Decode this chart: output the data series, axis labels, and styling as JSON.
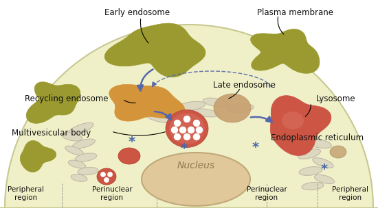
{
  "bg_color": "#ffffff",
  "cell_fill": "#f0f0c8",
  "cell_edge": "#c8c890",
  "olive_color": "#9a9a30",
  "olive_light": "#b8b845",
  "orange_color": "#d4943a",
  "tan_color": "#c8a070",
  "salmon_color": "#cc5544",
  "salmon_light": "#dd7766",
  "peach_color": "#e8c8a0",
  "er_fill": "#ddd8c0",
  "er_edge": "#c0baa8",
  "nucleus_fill": "#e0c89a",
  "nucleus_edge": "#c0a878",
  "arrow_color": "#5566aa",
  "asterisk_color": "#4466aa",
  "label_color": "#111111",
  "labels": {
    "early_endosome": "Early endosome",
    "plasma_membrane": "Plasma membrane",
    "recycling_endosome": "Recycling endosome",
    "late_endosome": "Late endosome",
    "lysosome": "Lysosome",
    "multivesicular_body": "Multivesicular body",
    "endoplasmic_reticulum": "Endoplasmic reticulum",
    "nucleus": "Nucleus",
    "peripheral_1": "Peripheral\nregion",
    "perinuclear_1": "Perinuclear\nregion",
    "perinuclear_2": "Perinuclear\nregion",
    "peripheral_2": "Peripheral\nregion"
  }
}
